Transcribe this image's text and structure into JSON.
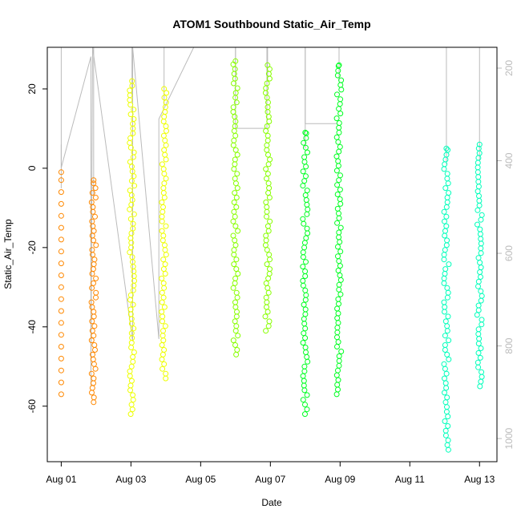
{
  "chart_data": {
    "type": "scatter",
    "title": "ATOM1 Southbound Static_Air_Temp",
    "xlabel": "Date",
    "ylabel": "Static_Air_Temp",
    "x_ticks": [
      "Aug 01",
      "Aug 03",
      "Aug 05",
      "Aug 07",
      "Aug 09",
      "Aug 11",
      "Aug 13"
    ],
    "x_tick_days": [
      1,
      3,
      5,
      7,
      9,
      11,
      13
    ],
    "xlim_days": [
      0.6,
      13.5
    ],
    "ylim": [
      -74,
      30.5
    ],
    "y_ticks": [
      20,
      0,
      -20,
      -40,
      -60
    ],
    "y2_ticks": [
      200,
      400,
      600,
      800,
      1000
    ],
    "y2_axis": {
      "color": "#bbbbbb",
      "reversed": true,
      "ylim": [
        1050,
        155
      ]
    },
    "grid": false,
    "legend": "none",
    "series": [
      {
        "color": "#ff8800",
        "flights": [
          {
            "day": 1.0,
            "min": -57,
            "max": -1,
            "sparse": true
          },
          {
            "day": 1.93,
            "min": -59,
            "max": -3,
            "sparse": false
          }
        ]
      },
      {
        "color": "#eeff00",
        "flights": [
          {
            "day": 3.03,
            "min": -62,
            "max": 22,
            "sparse": false
          },
          {
            "day": 3.95,
            "min": -53,
            "max": 20,
            "sparse": false
          }
        ]
      },
      {
        "color": "#88ff00",
        "flights": [
          {
            "day": 6.0,
            "min": -47,
            "max": 27,
            "sparse": false
          },
          {
            "day": 6.92,
            "min": -41,
            "max": 26,
            "sparse": false
          }
        ]
      },
      {
        "color": "#00ff22",
        "flights": [
          {
            "day": 8.0,
            "min": -62,
            "max": 9,
            "sparse": false
          },
          {
            "day": 8.97,
            "min": -57,
            "max": 26,
            "sparse": false
          }
        ]
      },
      {
        "color": "#00ffbb",
        "flights": [
          {
            "day": 12.05,
            "min": -71,
            "max": 5,
            "sparse": false
          },
          {
            "day": 13.0,
            "min": -55,
            "max": 6,
            "sparse": false
          }
        ]
      }
    ],
    "pressure_trace": {
      "color": "#bbbbbb",
      "points": [
        {
          "day": 1.0,
          "p": 365
        },
        {
          "day": 1.0,
          "p": 415
        },
        {
          "day": 1.85,
          "p": 175
        },
        {
          "day": 1.85,
          "p": 885
        },
        {
          "day": 1.9,
          "p": 145
        },
        {
          "day": 3.05,
          "p": 790
        },
        {
          "day": 3.05,
          "p": 150
        },
        {
          "day": 3.8,
          "p": 785
        },
        {
          "day": 3.8,
          "p": 310
        },
        {
          "day": 4.8,
          "p": 145
        },
        {
          "day": 6.0,
          "p": 145
        },
        {
          "day": 6.0,
          "p": 330
        },
        {
          "day": 6.9,
          "p": 330
        },
        {
          "day": 6.9,
          "p": 150
        },
        {
          "day": 7.2,
          "p": 150
        },
        {
          "day": 8.0,
          "p": 150
        },
        {
          "day": 8.0,
          "p": 320
        },
        {
          "day": 8.9,
          "p": 320
        }
      ]
    }
  }
}
